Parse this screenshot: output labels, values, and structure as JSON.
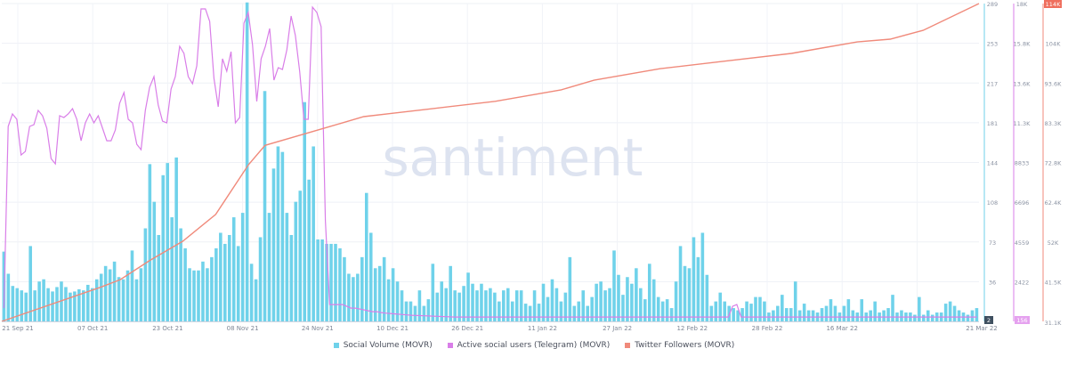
{
  "chart_data": {
    "type": "bar",
    "watermark": "santiment",
    "x_tick_labels": [
      "21 Sep 21",
      "07 Oct 21",
      "23 Oct 21",
      "08 Nov 21",
      "24 Nov 21",
      "10 Dec 21",
      "26 Dec 21",
      "11 Jan 22",
      "27 Jan 22",
      "12 Feb 22",
      "28 Feb 22",
      "16 Mar 22",
      "21 Mar 22"
    ],
    "x_start": "21 Sep 21",
    "x_end": "21 Mar 22",
    "axes": [
      {
        "series": "Social Volume (MOVR)",
        "color": "#6fd2ea",
        "range": [
          2,
          289
        ],
        "tick_labels": [
          "36",
          "73",
          "108",
          "144",
          "181",
          "217",
          "253",
          "289"
        ],
        "min_badge": "2"
      },
      {
        "series": "Active social users (Telegram) (MOVR)",
        "color": "#d97ee8",
        "range": [
          156,
          18000
        ],
        "tick_labels": [
          "2422",
          "4559",
          "6696",
          "8833",
          "11.3K",
          "13.6K",
          "15.8K",
          "18K"
        ],
        "min_badge": "156"
      },
      {
        "series": "Twitter Followers (MOVR)",
        "color": "#f08a7b",
        "range": [
          31100,
          114000
        ],
        "tick_labels": [
          "41.5K",
          "52K",
          "62.4K",
          "72.8K",
          "83.3K",
          "93.6K",
          "104K"
        ],
        "max_badge": "114K",
        "min_label": "31.1K"
      }
    ],
    "series": [
      {
        "name": "Social Volume (MOVR)",
        "type": "bar",
        "color": "#6fd2ea",
        "values": [
          65,
          45,
          34,
          32,
          30,
          28,
          70,
          30,
          38,
          40,
          32,
          29,
          33,
          38,
          33,
          28,
          29,
          31,
          30,
          35,
          32,
          40,
          45,
          52,
          49,
          56,
          42,
          40,
          48,
          66,
          40,
          50,
          86,
          144,
          110,
          80,
          134,
          145,
          96,
          150,
          86,
          68,
          50,
          48,
          48,
          56,
          50,
          60,
          68,
          82,
          72,
          80,
          96,
          70,
          100,
          290,
          54,
          40,
          78,
          210,
          100,
          140,
          160,
          155,
          100,
          80,
          110,
          120,
          200,
          130,
          160,
          76,
          76,
          72,
          72,
          72,
          68,
          60,
          45,
          42,
          45,
          60,
          118,
          82,
          50,
          52,
          60,
          40,
          50,
          38,
          30,
          20,
          20,
          16,
          30,
          16,
          22,
          54,
          28,
          38,
          32,
          52,
          30,
          28,
          34,
          46,
          36,
          30,
          36,
          30,
          32,
          28,
          20,
          30,
          32,
          20,
          30,
          30,
          18,
          16,
          30,
          18,
          36,
          24,
          40,
          32,
          20,
          28,
          60,
          16,
          20,
          30,
          16,
          24,
          36,
          38,
          30,
          32,
          66,
          44,
          26,
          42,
          36,
          50,
          32,
          22,
          54,
          40,
          24,
          20,
          22,
          14,
          38,
          70,
          52,
          50,
          78,
          60,
          82,
          44,
          16,
          20,
          28,
          20,
          16,
          14,
          12,
          14,
          20,
          18,
          24,
          24,
          20,
          10,
          12,
          16,
          26,
          14,
          14,
          38,
          12,
          18,
          12,
          12,
          10,
          14,
          16,
          22,
          16,
          10,
          16,
          22,
          12,
          10,
          22,
          10,
          12,
          20,
          10,
          12,
          14,
          26,
          10,
          12,
          10,
          10,
          8,
          24,
          8,
          12,
          8,
          10,
          10,
          18,
          20,
          16,
          12,
          10,
          8,
          12,
          14
        ]
      },
      {
        "name": "Active social users (Telegram) (MOVR)",
        "type": "line",
        "color": "#d97ee8",
        "values": [
          900,
          11100,
          11800,
          11500,
          9500,
          9700,
          11100,
          11200,
          12000,
          11700,
          11000,
          9300,
          9000,
          11700,
          11600,
          11800,
          12100,
          11500,
          10300,
          11300,
          11800,
          11300,
          11700,
          11000,
          10300,
          10300,
          10900,
          12400,
          13000,
          11500,
          11300,
          10100,
          9800,
          12000,
          13300,
          13900,
          12300,
          11400,
          11300,
          13200,
          13900,
          15600,
          15200,
          13900,
          13500,
          14500,
          17700,
          17700,
          17000,
          13800,
          12200,
          14900,
          14200,
          15300,
          11300,
          11600,
          16900,
          17500,
          15700,
          12500,
          14900,
          15600,
          16600,
          13700,
          14400,
          14300,
          15400,
          17300,
          16200,
          14200,
          11500,
          11500,
          17800,
          17500,
          16700,
          5800,
          1100,
          1100,
          1100,
          1100,
          1000,
          900,
          900,
          850,
          800,
          750,
          700,
          700,
          650,
          620,
          600,
          580,
          560,
          540,
          520,
          500,
          490,
          480,
          470,
          460,
          450,
          440,
          430,
          420,
          410,
          400,
          400,
          400,
          400,
          400,
          400,
          400,
          400,
          400,
          400,
          400,
          400,
          400,
          400,
          400,
          400,
          400,
          400,
          400,
          400,
          400,
          400,
          400,
          400,
          400,
          400,
          400,
          400,
          400,
          400,
          400,
          400,
          400,
          400,
          400,
          400,
          400,
          400,
          400,
          400,
          400,
          400,
          400,
          400,
          400,
          400,
          400,
          400,
          400,
          400,
          400,
          400,
          400,
          400,
          400,
          400,
          400,
          400,
          400,
          400,
          400,
          400,
          400,
          400,
          400,
          1000,
          1100,
          400,
          400,
          400,
          400,
          400,
          400,
          400,
          400,
          400,
          400,
          400,
          400,
          400,
          400,
          400,
          400,
          400,
          400,
          400,
          400,
          400,
          400,
          400,
          400,
          400,
          400,
          400,
          400,
          400,
          400,
          400,
          400,
          400,
          400,
          400,
          400,
          400,
          400,
          400,
          400,
          400,
          400,
          400,
          400,
          400,
          400,
          400,
          400,
          400,
          400,
          400,
          400,
          400,
          400,
          400,
          400
        ]
      },
      {
        "name": "Twitter Followers (MOVR)",
        "type": "line",
        "color": "#f08a7b",
        "x_index": [
          0,
          30,
          36,
          45,
          55,
          65,
          75,
          80,
          100,
          110,
          130,
          150,
          170,
          180,
          200,
          220,
          240,
          250,
          260,
          270,
          280,
          297
        ],
        "values": [
          31100,
          40000,
          42000,
          47000,
          52000,
          59000,
          72000,
          77000,
          82000,
          84500,
          86500,
          88500,
          91500,
          94000,
          97000,
          99000,
          101000,
          102500,
          104000,
          104700,
          107000,
          114000
        ]
      }
    ]
  }
}
